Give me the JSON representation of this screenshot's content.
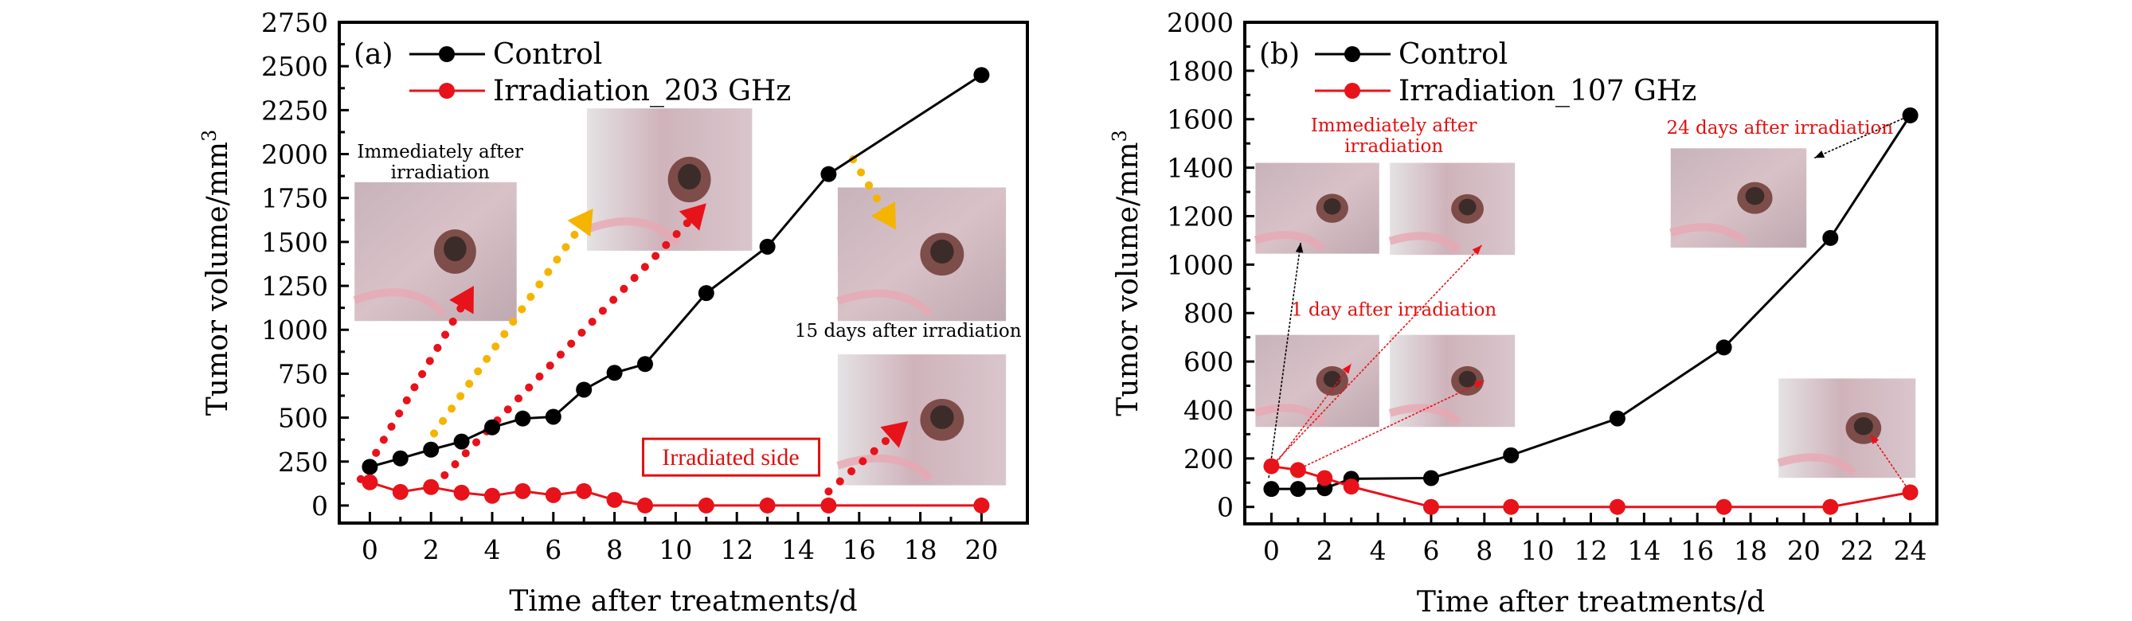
{
  "chart_data": [
    {
      "type": "line",
      "panel_label": "(a)",
      "xlabel": "Time after treatments/d",
      "ylabel": "Tumor volume/mm",
      "ylabel_superscript": "3",
      "xlim": [
        -1,
        21.5
      ],
      "ylim": [
        -100,
        2750
      ],
      "xticks": [
        0,
        2,
        4,
        6,
        8,
        10,
        12,
        14,
        16,
        18,
        20
      ],
      "yticks": [
        0,
        250,
        500,
        750,
        1000,
        1250,
        1500,
        1750,
        2000,
        2250,
        2500,
        2750
      ],
      "grid": false,
      "legend_position": "top-left",
      "series": [
        {
          "name": "Control",
          "color": "#000000",
          "x": [
            0,
            1,
            2,
            3,
            4,
            5,
            6,
            7,
            8,
            9,
            11,
            13,
            15,
            20
          ],
          "y": [
            220,
            268,
            318,
            364,
            445,
            495,
            505,
            659,
            755,
            805,
            1209,
            1473,
            1886,
            2450
          ]
        },
        {
          "name": "Irradiation_203 GHz",
          "color": "#e8121a",
          "x": [
            0,
            1,
            2,
            3,
            4,
            5,
            6,
            7,
            8,
            9,
            11,
            13,
            15,
            20
          ],
          "y": [
            132,
            77,
            105,
            73,
            55,
            82,
            59,
            82,
            32,
            0,
            0,
            0,
            0,
            0
          ]
        }
      ],
      "annotations": [
        {
          "text_lines": [
            "Immediately after",
            "irradiation"
          ],
          "color": "#000000",
          "x": 2.3,
          "y": 1980
        },
        {
          "text_lines": [
            "15 days after irradiation"
          ],
          "color": "#000000",
          "x": 17.6,
          "y": 960
        },
        {
          "text_lines": [
            "Irradiated side"
          ],
          "color": "#e01010",
          "boxed": true,
          "x": 11.8,
          "y": 230
        }
      ],
      "photos": [
        {
          "name": "photo-immediately-after",
          "x0": -0.5,
          "x1": 4.8,
          "y0": 1840,
          "y1": 1050
        },
        {
          "name": "photo-mid",
          "x0": 7.1,
          "x1": 12.5,
          "y0": 2260,
          "y1": 1450
        },
        {
          "name": "photo-15-days-top",
          "x0": 15.3,
          "x1": 20.8,
          "y0": 1810,
          "y1": 1050
        },
        {
          "name": "photo-15-days-bottom",
          "x0": 15.3,
          "x1": 20.8,
          "y0": 860,
          "y1": 115
        }
      ],
      "dotted_arrows": [
        {
          "color": "#e8121a",
          "from": [
            -0.3,
            150
          ],
          "to": [
            3.4,
            1250
          ]
        },
        {
          "color": "#f5b400",
          "from": [
            2.1,
            410
          ],
          "to": [
            7.3,
            1690
          ]
        },
        {
          "color": "#e8121a",
          "from": [
            2.1,
            110
          ],
          "to": [
            11.0,
            1720
          ]
        },
        {
          "color": "#f5b400",
          "from": [
            15.8,
            1970
          ],
          "to": [
            17.2,
            1570
          ]
        },
        {
          "color": "#e8121a",
          "from": [
            15.0,
            80
          ],
          "to": [
            17.6,
            480
          ]
        }
      ]
    },
    {
      "type": "line",
      "panel_label": "(b)",
      "xlabel": "Time after treatments/d",
      "ylabel": "Tumor volume/mm",
      "ylabel_superscript": "3",
      "xlim": [
        -1,
        25
      ],
      "ylim": [
        -70,
        2000
      ],
      "xticks": [
        0,
        2,
        4,
        6,
        8,
        10,
        12,
        14,
        16,
        18,
        20,
        22,
        24
      ],
      "yticks": [
        0,
        200,
        400,
        600,
        800,
        1000,
        1200,
        1400,
        1600,
        1800,
        2000
      ],
      "grid": false,
      "legend_position": "top-left",
      "series": [
        {
          "name": "Control",
          "color": "#000000",
          "x": [
            0,
            1,
            2,
            3,
            6,
            9,
            13,
            17,
            21,
            24
          ],
          "y": [
            74,
            74,
            77,
            116,
            119,
            213,
            365,
            658,
            1110,
            1616
          ]
        },
        {
          "name": "Irradiation_107 GHz",
          "color": "#e8121a",
          "x": [
            0,
            1,
            2,
            3,
            6,
            9,
            13,
            17,
            21,
            24
          ],
          "y": [
            168,
            152,
            119,
            84,
            0,
            0,
            0,
            0,
            0,
            60
          ]
        }
      ],
      "annotations": [
        {
          "text_lines": [
            "Immediately after",
            "irradiation"
          ],
          "color": "#e01010",
          "x": 4.6,
          "y": 1550
        },
        {
          "text_lines": [
            "1 day after irradiation"
          ],
          "color": "#e01010",
          "x": 4.6,
          "y": 790
        },
        {
          "text_lines": [
            "24 days after irradiation"
          ],
          "color": "#e01010",
          "x": 19.1,
          "y": 1540
        }
      ],
      "photos": [
        {
          "name": "photo-b-immediate-left",
          "x0": -0.6,
          "x1": 4.05,
          "y0": 1420,
          "y1": 1045
        },
        {
          "name": "photo-b-immediate-right",
          "x0": 4.45,
          "x1": 9.15,
          "y0": 1420,
          "y1": 1040
        },
        {
          "name": "photo-b-1day-left",
          "x0": -0.6,
          "x1": 4.05,
          "y0": 710,
          "y1": 330
        },
        {
          "name": "photo-b-1day-right",
          "x0": 4.45,
          "x1": 9.15,
          "y0": 710,
          "y1": 330
        },
        {
          "name": "photo-b-24days",
          "x0": 15.0,
          "x1": 20.1,
          "y0": 1480,
          "y1": 1070
        },
        {
          "name": "photo-b-lower-right",
          "x0": 19.05,
          "x1": 24.2,
          "y0": 530,
          "y1": 120
        }
      ],
      "thin_arrows": [
        {
          "color": "#000000",
          "from": [
            -0.1,
            120
          ],
          "to": [
            1.1,
            1090
          ]
        },
        {
          "color": "#e8121a",
          "from": [
            0.1,
            180
          ],
          "to": [
            7.9,
            1080
          ]
        },
        {
          "color": "#e8121a",
          "from": [
            0.1,
            170
          ],
          "to": [
            3.0,
            590
          ]
        },
        {
          "color": "#e8121a",
          "from": [
            1.1,
            160
          ],
          "to": [
            8.0,
            520
          ]
        },
        {
          "color": "#000000",
          "from": [
            24,
            1616
          ],
          "to": [
            20.4,
            1440
          ]
        },
        {
          "color": "#e8121a",
          "from": [
            24,
            60
          ],
          "to": [
            22.5,
            300
          ]
        }
      ]
    }
  ]
}
